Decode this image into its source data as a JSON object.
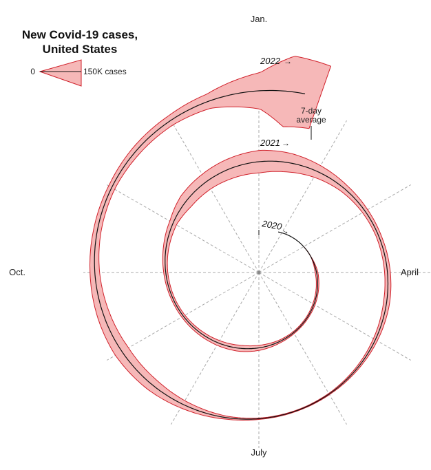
{
  "chart_data": {
    "type": "area",
    "title_lines": [
      "New Covid-19 cases,",
      "United States"
    ],
    "legend": {
      "zero_label": "0",
      "max_label": "150K cases",
      "max_value": 150000
    },
    "average_label_lines": [
      "7-day",
      "average"
    ],
    "month_labels": {
      "top": "Jan.",
      "right": "April",
      "bottom": "July",
      "left": "Oct."
    },
    "year_labels": [
      "2020",
      "2021",
      "2022"
    ],
    "colors": {
      "band_fill": "#f6b8b8",
      "band_stroke": "#d0202a",
      "line": "#111111",
      "grid": "#a8a8a8"
    },
    "series": [
      {
        "name": "",
        "x": [
          "2020-01-01",
          "2020-02-01",
          "2020-03-01",
          "2020-03-15",
          "2020-04-01",
          "2020-04-15",
          "2020-05-01",
          "2020-05-15",
          "2020-06-01",
          "2020-06-15",
          "2020-07-01",
          "2020-07-15",
          "2020-08-01",
          "2020-08-15",
          "2020-09-01",
          "2020-09-15",
          "2020-10-01",
          "2020-10-15",
          "2020-11-01",
          "2020-11-15",
          "2020-12-01",
          "2020-12-15",
          "2021-01-01",
          "2021-01-15",
          "2021-02-01",
          "2021-02-15",
          "2021-03-01",
          "2021-03-15",
          "2021-04-01",
          "2021-04-15",
          "2021-05-01",
          "2021-05-15",
          "2021-06-01",
          "2021-06-15",
          "2021-07-01",
          "2021-07-15",
          "2021-08-01",
          "2021-08-15",
          "2021-09-01",
          "2021-09-15",
          "2021-10-01",
          "2021-10-15",
          "2021-11-01",
          "2021-11-15",
          "2021-12-01",
          "2021-12-15",
          "2022-01-01",
          "2022-01-10",
          "2022-01-20"
        ],
        "values": [
          0,
          0,
          0,
          2000,
          30000,
          28000,
          27000,
          22000,
          22000,
          32000,
          55000,
          68000,
          58000,
          50000,
          40000,
          38000,
          45000,
          58000,
          85000,
          160000,
          185000,
          215000,
          245000,
          210000,
          140000,
          90000,
          65000,
          55000,
          63000,
          68000,
          50000,
          32000,
          16000,
          12000,
          14000,
          35000,
          90000,
          140000,
          165000,
          140000,
          105000,
          85000,
          75000,
          95000,
          110000,
          160000,
          400000,
          780000,
          720000
        ]
      }
    ]
  }
}
